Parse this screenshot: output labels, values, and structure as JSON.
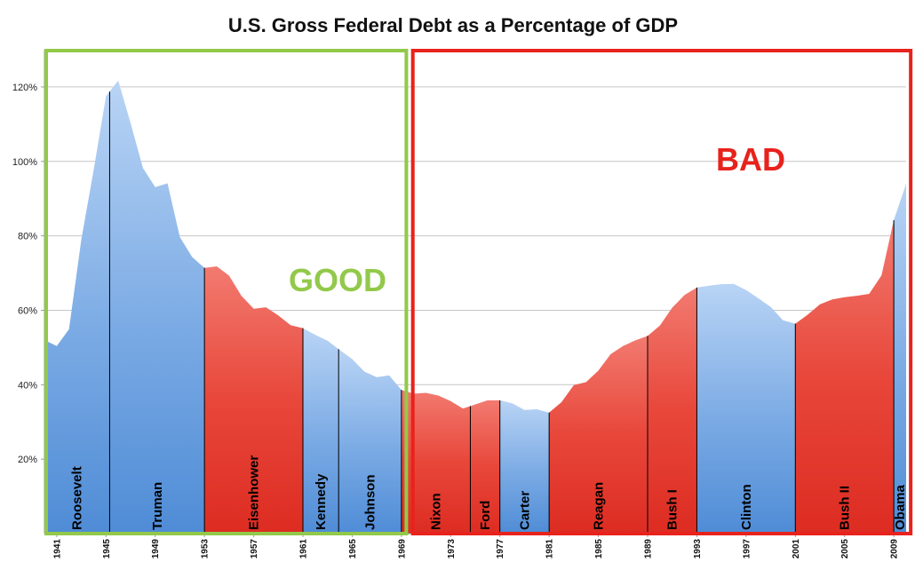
{
  "chart_data": {
    "type": "area",
    "title": "U.S. Gross Federal Debt as a Percentage of GDP",
    "xlabel": "",
    "ylabel": "",
    "xlim": [
      1940,
      2010
    ],
    "ylim": [
      0,
      130
    ],
    "y_ticks": [
      20,
      40,
      60,
      80,
      100,
      120
    ],
    "y_tick_labels": [
      "20%",
      "40%",
      "60%",
      "80%",
      "100%",
      "120%"
    ],
    "x_ticks": [
      1941,
      1945,
      1949,
      1953,
      1957,
      1961,
      1965,
      1969,
      1973,
      1977,
      1981,
      1985,
      1989,
      1993,
      1997,
      2001,
      2005,
      2009
    ],
    "grid": true,
    "x": [
      1940,
      1941,
      1942,
      1943,
      1944,
      1945,
      1946,
      1947,
      1948,
      1949,
      1950,
      1951,
      1952,
      1953,
      1954,
      1955,
      1956,
      1957,
      1958,
      1959,
      1960,
      1961,
      1962,
      1963,
      1964,
      1965,
      1966,
      1967,
      1968,
      1969,
      1970,
      1971,
      1972,
      1973,
      1974,
      1975,
      1976,
      1977,
      1978,
      1979,
      1980,
      1981,
      1982,
      1983,
      1984,
      1985,
      1986,
      1987,
      1988,
      1989,
      1990,
      1991,
      1992,
      1993,
      1994,
      1995,
      1996,
      1997,
      1998,
      1999,
      2000,
      2001,
      2002,
      2003,
      2004,
      2005,
      2006,
      2007,
      2008,
      2009,
      2010
    ],
    "values": [
      52,
      50.4,
      54.9,
      79.1,
      97.6,
      117.5,
      121.7,
      110.3,
      98.2,
      93.1,
      94.1,
      79.7,
      74.3,
      71.4,
      71.8,
      69.3,
      63.9,
      60.4,
      60.8,
      58.6,
      56.0,
      55.2,
      53.4,
      51.8,
      49.3,
      46.9,
      43.5,
      42.0,
      42.5,
      38.6,
      37.6,
      37.8,
      37.1,
      35.6,
      33.6,
      34.7,
      35.8,
      35.8,
      35.0,
      33.2,
      33.4,
      32.5,
      35.3,
      39.9,
      40.7,
      43.8,
      48.2,
      50.4,
      51.9,
      53.1,
      55.9,
      60.7,
      64.1,
      66.1,
      66.6,
      67.0,
      67.1,
      65.4,
      63.2,
      60.9,
      57.3,
      56.4,
      58.8,
      61.6,
      62.9,
      63.5,
      63.9,
      64.4,
      69.4,
      84.2,
      94.0
    ],
    "presidents": [
      {
        "name": "Roosevelt",
        "start": 1940,
        "end": 1945.3,
        "party": "D"
      },
      {
        "name": "Truman",
        "start": 1945.3,
        "end": 1953,
        "party": "D"
      },
      {
        "name": "Eisenhower",
        "start": 1953,
        "end": 1961,
        "party": "R"
      },
      {
        "name": "Kennedy",
        "start": 1961,
        "end": 1963.9,
        "party": "D"
      },
      {
        "name": "Johnson",
        "start": 1963.9,
        "end": 1969,
        "party": "D"
      },
      {
        "name": "Nixon",
        "start": 1969,
        "end": 1974.6,
        "party": "R"
      },
      {
        "name": "Ford",
        "start": 1974.6,
        "end": 1977,
        "party": "R"
      },
      {
        "name": "Carter",
        "start": 1977,
        "end": 1981,
        "party": "D"
      },
      {
        "name": "Reagan",
        "start": 1981,
        "end": 1989,
        "party": "R"
      },
      {
        "name": "Bush I",
        "start": 1989,
        "end": 1993,
        "party": "R"
      },
      {
        "name": "Clinton",
        "start": 1993,
        "end": 2001,
        "party": "D"
      },
      {
        "name": "Bush II",
        "start": 2001,
        "end": 2009,
        "party": "R"
      },
      {
        "name": "Obama",
        "start": 2009,
        "end": 2010.3,
        "party": "D"
      }
    ],
    "annotations": [
      {
        "text": "GOOD",
        "color": "#92c94a",
        "range": [
          1940,
          1969.4
        ]
      },
      {
        "text": "BAD",
        "color": "#e8221c",
        "range": [
          1970,
          2010.3
        ]
      }
    ],
    "colors": {
      "democrat": "#6aa0de",
      "republican": "#e53c2f",
      "grid": "#c6c6c6",
      "axis": "#9a9a9a"
    }
  }
}
